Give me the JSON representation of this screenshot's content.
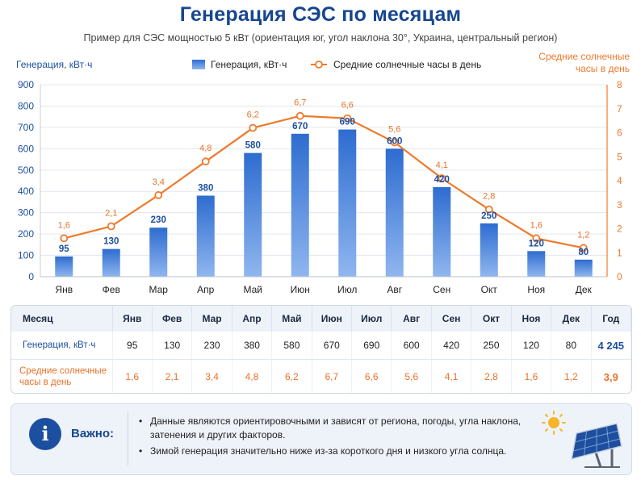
{
  "header": {
    "title": "Генерация СЭС по месяцам",
    "subtitle": "Пример для СЭС мощностью 5 кВт (ориентация юг, угол наклона 30°, Украина, центральный регион)"
  },
  "chart_data": {
    "type": "bar+line",
    "categories": [
      "Янв",
      "Фев",
      "Мар",
      "Апр",
      "Май",
      "Июн",
      "Июл",
      "Авг",
      "Сен",
      "Окт",
      "Ноя",
      "Дек"
    ],
    "series": [
      {
        "name": "Генерация, кВт·ч",
        "type": "bar",
        "axis": "left",
        "values": [
          95,
          130,
          230,
          380,
          580,
          670,
          690,
          600,
          420,
          250,
          120,
          80
        ],
        "labels": [
          "95",
          "130",
          "230",
          "380",
          "580",
          "670",
          "690",
          "600",
          "420",
          "250",
          "120",
          "80"
        ]
      },
      {
        "name": "Средние солнечные часы в день",
        "type": "line",
        "axis": "right",
        "values": [
          1.6,
          2.1,
          3.4,
          4.8,
          6.2,
          6.7,
          6.6,
          5.6,
          4.1,
          2.8,
          1.6,
          1.2
        ],
        "labels": [
          "1,6",
          "2,1",
          "3,4",
          "4,8",
          "6,2",
          "6,7",
          "6,6",
          "5,6",
          "4,1",
          "2,8",
          "1,6",
          "1,2"
        ]
      }
    ],
    "ylabel_left": "Генерация, кВт·ч",
    "ylabel_right_lines": [
      "Средние солнечные",
      "часы в день"
    ],
    "ylim_left": [
      0,
      900
    ],
    "ylim_right": [
      0,
      8
    ],
    "yticks_left": [
      "0",
      "100",
      "200",
      "300",
      "400",
      "500",
      "600",
      "700",
      "800",
      "900"
    ],
    "yticks_right": [
      "0",
      "1",
      "2",
      "3",
      "4",
      "5",
      "6",
      "7",
      "8"
    ],
    "grid": true,
    "legend_position": "top-center",
    "colors": {
      "bar": "#3a78d6",
      "line": "#ee7a2c",
      "left_axis": "#1d4fa0",
      "right_axis": "#ee7a2c"
    }
  },
  "table": {
    "headers": [
      "Месяц",
      "Янв",
      "Фев",
      "Мар",
      "Апр",
      "Май",
      "Июн",
      "Июл",
      "Авг",
      "Сен",
      "Окт",
      "Ноя",
      "Дек",
      "Год"
    ],
    "generation_label": "Генерация, кВт·ч",
    "generation": [
      "95",
      "130",
      "230",
      "380",
      "580",
      "670",
      "690",
      "600",
      "420",
      "250",
      "120",
      "80",
      "4 245"
    ],
    "sun_label_lines": [
      "Средние солнечные",
      "часы в день"
    ],
    "sun": [
      "1,6",
      "2,1",
      "3,4",
      "4,8",
      "6,2",
      "6,7",
      "6,6",
      "5,6",
      "4,1",
      "2,8",
      "1,6",
      "1,2",
      "3,9"
    ]
  },
  "note": {
    "icon": "info-icon",
    "label": "Важно:",
    "items": [
      "Данные являются ориентировочными и зависят от региона, погоды, угла наклона, затенения и других факторов.",
      "Зимой генерация значительно ниже из-за короткого дня и низкого угла солнца."
    ],
    "image": "solar-panel-icon"
  }
}
